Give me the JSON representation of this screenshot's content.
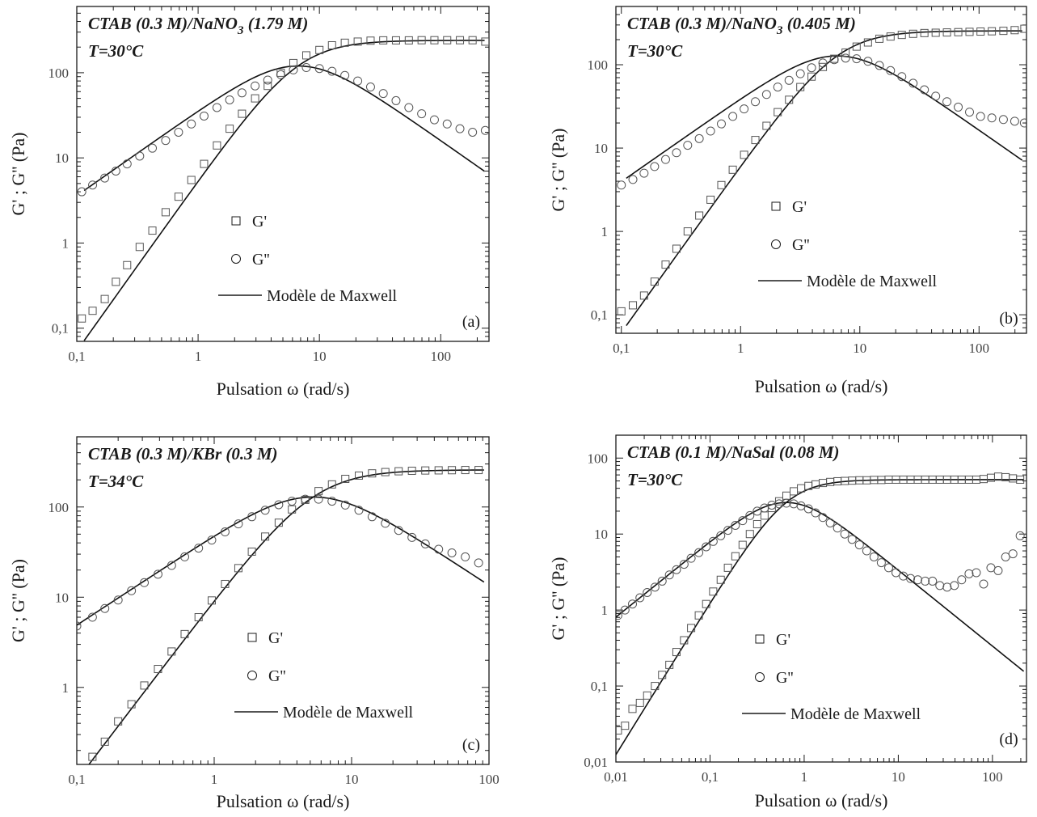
{
  "figure": {
    "y_axis_label": "G' ; G'' (Pa)",
    "x_axis_label": "Pulsation ω (rad/s)",
    "legend": {
      "storage": "G'",
      "loss": "G''",
      "model": "Modèle de Maxwell"
    },
    "colors": {
      "ink": "#1a1a1a",
      "markers": "#555555",
      "model_line": "#111111"
    }
  },
  "chart_data": [
    {
      "type": "scatter",
      "panel": "(a)",
      "title": "CTAB (0.3 M)/NaNO3 (1.79 M)",
      "title_main": "CTAB (0.3 M)/NaNO",
      "title_sub": "3",
      "title_tail": " (1.79 M)",
      "temperature": "T=30°C",
      "xscale": "log",
      "yscale": "log",
      "xlim": [
        0.1,
        250
      ],
      "ylim": [
        0.07,
        600
      ],
      "xticks": [
        0.1,
        1,
        10,
        100
      ],
      "xtick_labels": [
        "0,1",
        "1",
        "10",
        "100"
      ],
      "yticks": [
        0.1,
        1,
        10,
        100
      ],
      "ytick_labels": [
        "0,1",
        "1",
        "10",
        "100"
      ],
      "model": {
        "G0": 240,
        "tau": 0.15,
        "w_range": [
          0.115,
          230
        ]
      },
      "series": [
        {
          "name": "G'",
          "marker": "square",
          "x": [
            0.11,
            0.135,
            0.17,
            0.21,
            0.26,
            0.33,
            0.42,
            0.54,
            0.69,
            0.88,
            1.12,
            1.43,
            1.82,
            2.3,
            2.95,
            3.75,
            4.8,
            6.1,
            7.8,
            10,
            12.7,
            16.2,
            20.7,
            26.4,
            33.6,
            42.8,
            54.6,
            69.6,
            88.7,
            113,
            144,
            183,
            233
          ],
          "y": [
            0.13,
            0.16,
            0.22,
            0.35,
            0.55,
            0.9,
            1.4,
            2.3,
            3.5,
            5.5,
            8.5,
            14,
            22,
            33,
            50,
            70,
            100,
            130,
            160,
            185,
            210,
            225,
            232,
            238,
            240,
            240,
            240,
            241,
            241,
            241,
            241,
            241,
            232
          ]
        },
        {
          "name": "G''",
          "marker": "circle",
          "x": [
            0.11,
            0.135,
            0.17,
            0.21,
            0.26,
            0.33,
            0.42,
            0.54,
            0.69,
            0.88,
            1.12,
            1.43,
            1.82,
            2.3,
            2.95,
            3.75,
            4.8,
            6.1,
            7.8,
            10,
            12.7,
            16.2,
            20.7,
            26.4,
            33.6,
            42.8,
            54.6,
            69.6,
            88.7,
            113,
            144,
            183,
            233
          ],
          "y": [
            4,
            4.8,
            5.8,
            7,
            8.5,
            10.5,
            13,
            16,
            20,
            25,
            31,
            39,
            48,
            58,
            70,
            82,
            95,
            108,
            115,
            112,
            104,
            93,
            80,
            68,
            57,
            47,
            39,
            33,
            28,
            25,
            22,
            20,
            21
          ]
        }
      ]
    },
    {
      "type": "scatter",
      "panel": "(b)",
      "title": "CTAB (0.3 M)/NaNO3 (0.405 M)",
      "title_main": "CTAB (0.3 M)/NaNO",
      "title_sub": "3",
      "title_tail": " (0.405 M)",
      "temperature": "T=30°C",
      "xscale": "log",
      "yscale": "log",
      "xlim": [
        0.09,
        250
      ],
      "ylim": [
        0.06,
        500
      ],
      "xticks": [
        0.1,
        1,
        10,
        100
      ],
      "xtick_labels": [
        "0,1",
        "1",
        "10",
        "100"
      ],
      "yticks": [
        0.1,
        1,
        10,
        100
      ],
      "ytick_labels": [
        "0,1",
        "1",
        "10",
        "100"
      ],
      "model": {
        "G0": 255,
        "tau": 0.155,
        "w_range": [
          0.11,
          230
        ]
      },
      "series": [
        {
          "name": "G'",
          "marker": "square",
          "x": [
            0.1,
            0.125,
            0.155,
            0.19,
            0.235,
            0.29,
            0.36,
            0.45,
            0.56,
            0.69,
            0.86,
            1.07,
            1.33,
            1.65,
            2.05,
            2.55,
            3.17,
            3.94,
            4.9,
            6.1,
            7.6,
            9.4,
            11.7,
            14.6,
            18.1,
            22.5,
            28,
            34.8,
            43.3,
            53.8,
            66.9,
            83.2,
            103,
            128,
            160,
            199,
            240
          ],
          "y": [
            0.11,
            0.13,
            0.17,
            0.25,
            0.4,
            0.62,
            1,
            1.55,
            2.4,
            3.6,
            5.5,
            8.3,
            12.5,
            18.5,
            27,
            38,
            54,
            72,
            94,
            118,
            140,
            165,
            185,
            205,
            218,
            228,
            235,
            240,
            242,
            244,
            246,
            248,
            250,
            252,
            255,
            260,
            270
          ]
        },
        {
          "name": "G''",
          "marker": "circle",
          "x": [
            0.1,
            0.125,
            0.155,
            0.19,
            0.235,
            0.29,
            0.36,
            0.45,
            0.56,
            0.69,
            0.86,
            1.07,
            1.33,
            1.65,
            2.05,
            2.55,
            3.17,
            3.94,
            4.9,
            6.1,
            7.6,
            9.4,
            11.7,
            14.6,
            18.1,
            22.5,
            28,
            34.8,
            43.3,
            53.8,
            66.9,
            83.2,
            103,
            128,
            160,
            199,
            240
          ],
          "y": [
            3.6,
            4.2,
            5,
            6,
            7.3,
            8.8,
            10.8,
            13,
            16,
            19.5,
            24,
            29.5,
            36,
            44,
            54,
            65,
            78,
            92,
            105,
            115,
            120,
            118,
            110,
            98,
            85,
            72,
            60,
            50,
            42,
            36,
            31,
            27,
            24,
            23,
            22,
            21,
            20
          ]
        }
      ]
    },
    {
      "type": "scatter",
      "panel": "(c)",
      "title": "CTAB (0.3 M)/KBr (0.3 M)",
      "title_main": "CTAB (0.3 M)/KBr (0.3 M)",
      "title_sub": "",
      "title_tail": "",
      "temperature": "T=34°C",
      "xscale": "log",
      "yscale": "log",
      "xlim": [
        0.1,
        100
      ],
      "ylim": [
        0.14,
        600
      ],
      "xticks": [
        0.1,
        1,
        10,
        100
      ],
      "xtick_labels": [
        "0,1",
        "1",
        "10",
        "100"
      ],
      "yticks": [
        1,
        10,
        100
      ],
      "ytick_labels": [
        "1",
        "10",
        "100"
      ],
      "model": {
        "G0": 258,
        "tau": 0.19,
        "w_range": [
          0.1,
          92
        ]
      },
      "series": [
        {
          "name": "G'",
          "marker": "square",
          "x": [
            0.13,
            0.16,
            0.2,
            0.25,
            0.31,
            0.39,
            0.49,
            0.61,
            0.77,
            0.96,
            1.2,
            1.5,
            1.88,
            2.35,
            2.95,
            3.68,
            4.6,
            5.75,
            7.2,
            9,
            11.3,
            14.1,
            17.6,
            22,
            27.5,
            34.4,
            43,
            53.7,
            67.2,
            84
          ],
          "y": [
            0.17,
            0.25,
            0.42,
            0.65,
            1.05,
            1.6,
            2.5,
            3.9,
            6,
            9.2,
            14,
            21,
            32,
            47,
            67,
            94,
            120,
            150,
            178,
            205,
            223,
            236,
            244,
            249,
            252,
            254,
            255,
            256,
            257,
            257
          ]
        },
        {
          "name": "G''",
          "marker": "circle",
          "x": [
            0.1,
            0.13,
            0.16,
            0.2,
            0.25,
            0.31,
            0.39,
            0.49,
            0.61,
            0.77,
            0.96,
            1.2,
            1.5,
            1.88,
            2.35,
            2.95,
            3.68,
            4.6,
            5.75,
            7.2,
            9,
            11.3,
            14.1,
            17.6,
            22,
            27.5,
            34.4,
            43,
            53.7,
            67.2,
            84
          ],
          "y": [
            4.8,
            6,
            7.5,
            9.3,
            11.8,
            14.5,
            18,
            22.5,
            28,
            35,
            43,
            53,
            65,
            78,
            92,
            106,
            116,
            122,
            122,
            116,
            105,
            92,
            78,
            66,
            55,
            46,
            39,
            34,
            31,
            28,
            24
          ]
        }
      ]
    },
    {
      "type": "scatter",
      "panel": "(d)",
      "title": "CTAB (0.1 M)/NaSal (0.08 M)",
      "title_main": "CTAB (0.1 M)/NaSal (0.08 M)",
      "title_sub": "",
      "title_tail": "",
      "temperature": "T=30°C",
      "xscale": "log",
      "yscale": "log",
      "xlim": [
        0.01,
        230
      ],
      "ylim": [
        0.01,
        200
      ],
      "xticks": [
        0.01,
        0.1,
        1,
        10,
        100
      ],
      "xtick_labels": [
        "0,01",
        "0,1",
        "1",
        "10",
        "100"
      ],
      "yticks": [
        0.01,
        0.1,
        1,
        10,
        100
      ],
      "ytick_labels": [
        "0,01",
        "0,1",
        "1",
        "10",
        "100"
      ],
      "model": {
        "G0": 52,
        "tau": 1.55,
        "w_range": [
          0.01,
          215
        ]
      },
      "series": [
        {
          "name": "G'",
          "marker": "square",
          "x": [
            0.0105,
            0.0125,
            0.015,
            0.018,
            0.0215,
            0.026,
            0.031,
            0.037,
            0.044,
            0.053,
            0.063,
            0.076,
            0.091,
            0.108,
            0.13,
            0.155,
            0.186,
            0.222,
            0.265,
            0.317,
            0.379,
            0.453,
            0.542,
            0.648,
            0.775,
            0.926,
            1.11,
            1.32,
            1.58,
            1.89,
            2.26,
            2.7,
            3.23,
            3.86,
            4.62,
            5.52,
            6.6,
            7.9,
            9.44,
            11.3,
            13.5,
            16.1,
            19.3,
            23.1,
            27.6,
            33,
            39.4,
            47.1,
            56.4,
            67.4,
            80.6,
            96.3,
            115,
            138,
            165,
            197
          ],
          "y": [
            0.026,
            0.03,
            0.05,
            0.06,
            0.075,
            0.1,
            0.14,
            0.19,
            0.28,
            0.4,
            0.58,
            0.85,
            1.2,
            1.75,
            2.5,
            3.6,
            5.1,
            7.2,
            10,
            13.5,
            17.5,
            22,
            27,
            32,
            36.5,
            40,
            43,
            45,
            47,
            48.5,
            49.5,
            50,
            50.5,
            51,
            51,
            51.5,
            51.5,
            52,
            52,
            52,
            52,
            52,
            52,
            52,
            52,
            52,
            52,
            52,
            52,
            52,
            53,
            55,
            57,
            56,
            54,
            52
          ]
        },
        {
          "name": "G''",
          "marker": "circle",
          "x": [
            0.0105,
            0.0125,
            0.015,
            0.018,
            0.0215,
            0.026,
            0.031,
            0.037,
            0.044,
            0.053,
            0.063,
            0.076,
            0.091,
            0.108,
            0.13,
            0.155,
            0.186,
            0.222,
            0.265,
            0.317,
            0.379,
            0.453,
            0.542,
            0.648,
            0.775,
            0.926,
            1.11,
            1.32,
            1.58,
            1.89,
            2.26,
            2.7,
            3.23,
            3.86,
            4.62,
            5.52,
            6.6,
            7.9,
            9.44,
            11.3,
            13.5,
            16.1,
            19.3,
            23.1,
            27.6,
            33,
            39.4,
            47.1,
            56.4,
            67.4,
            80.6,
            96.3,
            115,
            138,
            165,
            197
          ],
          "y": [
            0.85,
            1,
            1.2,
            1.45,
            1.7,
            2,
            2.4,
            2.9,
            3.4,
            4,
            4.8,
            5.7,
            6.8,
            8,
            9.5,
            11.2,
            13,
            15,
            17.5,
            20,
            22,
            24,
            25,
            25.5,
            25,
            23.5,
            21.5,
            19,
            16.5,
            14,
            12,
            10,
            8.5,
            7.2,
            6,
            5,
            4.2,
            3.6,
            3.1,
            2.8,
            2.6,
            2.5,
            2.4,
            2.4,
            2.1,
            2,
            2.1,
            2.5,
            3,
            3.1,
            2.2,
            3.6,
            3.3,
            5,
            5.5,
            9.5
          ]
        }
      ]
    }
  ]
}
